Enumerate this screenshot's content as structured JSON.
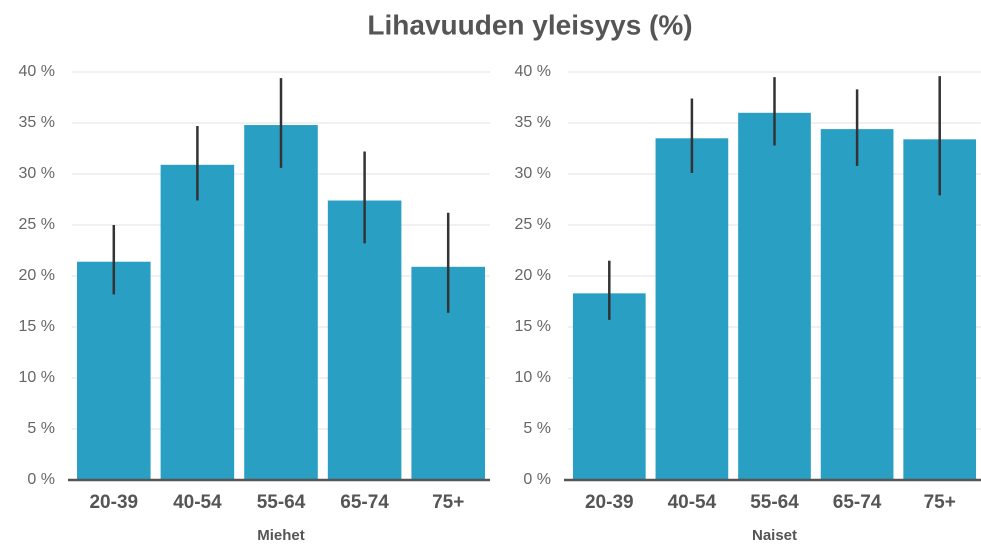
{
  "title": "Lihavuuden yleisyys (%)",
  "chart_data": [
    {
      "type": "bar",
      "xlabel": "Miehet",
      "categories": [
        "20-39",
        "40-54",
        "55-64",
        "65-74",
        "75+"
      ],
      "values": [
        21.4,
        30.9,
        34.8,
        27.4,
        20.9
      ],
      "ci_low": [
        18.2,
        27.4,
        30.6,
        23.2,
        16.4
      ],
      "ci_high": [
        25.0,
        34.7,
        39.4,
        32.2,
        26.2
      ],
      "color": "#2a9fc4",
      "error_color": "#333333",
      "ylim": [
        0,
        40
      ],
      "yticks": [
        {
          "value": 0,
          "label": "0 %"
        },
        {
          "value": 5,
          "label": "5 %"
        },
        {
          "value": 10,
          "label": "10 %"
        },
        {
          "value": 15,
          "label": "15 %"
        },
        {
          "value": 20,
          "label": "20 %"
        },
        {
          "value": 25,
          "label": "25 %"
        },
        {
          "value": 30,
          "label": "30 %"
        },
        {
          "value": 35,
          "label": "35 %"
        },
        {
          "value": 40,
          "label": "40 %"
        }
      ],
      "grid": true
    },
    {
      "type": "bar",
      "xlabel": "Naiset",
      "categories": [
        "20-39",
        "40-54",
        "55-64",
        "65-74",
        "75+"
      ],
      "values": [
        18.3,
        33.5,
        36.0,
        34.4,
        33.4
      ],
      "ci_low": [
        15.7,
        30.1,
        32.8,
        30.8,
        27.9
      ],
      "ci_high": [
        21.5,
        37.4,
        39.5,
        38.3,
        39.6
      ],
      "color": "#2a9fc4",
      "error_color": "#333333",
      "ylim": [
        0,
        40
      ],
      "yticks": [
        {
          "value": 0,
          "label": "0 %"
        },
        {
          "value": 5,
          "label": "5 %"
        },
        {
          "value": 10,
          "label": "10 %"
        },
        {
          "value": 15,
          "label": "15 %"
        },
        {
          "value": 20,
          "label": "20 %"
        },
        {
          "value": 25,
          "label": "25 %"
        },
        {
          "value": 30,
          "label": "30 %"
        },
        {
          "value": 35,
          "label": "35 %"
        },
        {
          "value": 40,
          "label": "40 %"
        }
      ],
      "grid": true
    }
  ]
}
